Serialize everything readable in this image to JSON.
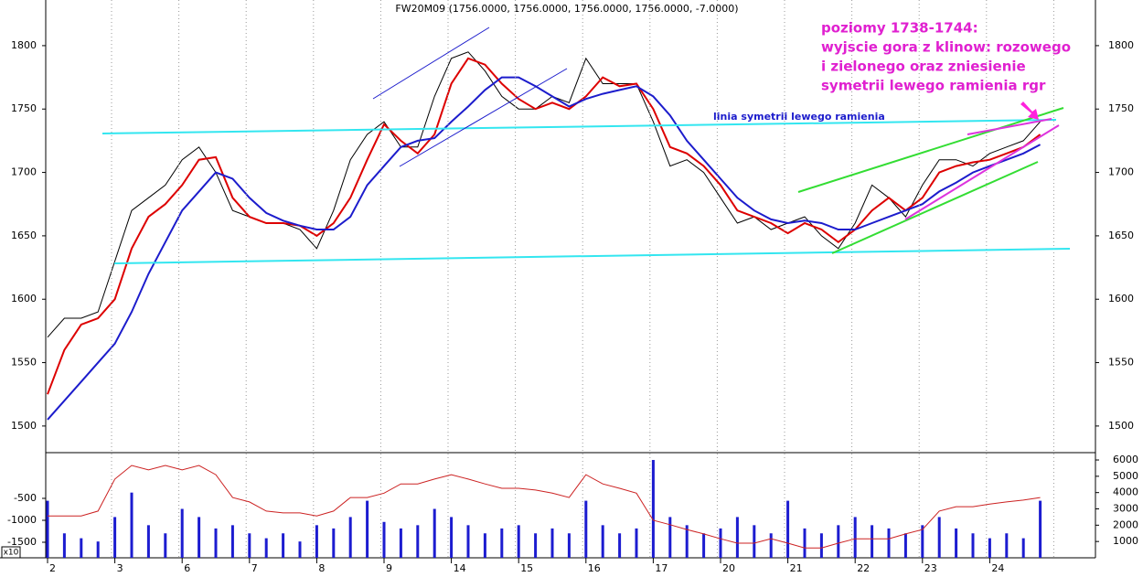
{
  "chart_data": [
    {
      "type": "line",
      "title": "FW20M09 (1756.0000, 1756.0000, 1756.0000, 1756.0000, -7.0000)",
      "annotations": [
        "linia symetrii lewego ramienia",
        "poziomy 1738-1744:",
        "wyjscie gora z klinow: rozowego",
        "i zielonego oraz zniesienie",
        "symetrii lewego ramienia rgr"
      ],
      "ylim": [
        1479,
        1836
      ],
      "yticks": [
        1500,
        1550,
        1600,
        1650,
        1700,
        1750,
        1800
      ],
      "grid": "x",
      "series": [
        {
          "color": "#000000",
          "values": [
            1570,
            1585,
            1585,
            1590,
            1630,
            1670,
            1680,
            1690,
            1710,
            1720,
            1700,
            1670,
            1665,
            1660,
            1660,
            1655,
            1640,
            1670,
            1710,
            1730,
            1740,
            1720,
            1720,
            1760,
            1790,
            1795,
            1780,
            1760,
            1750,
            1750,
            1760,
            1755,
            1790,
            1770,
            1770,
            1770,
            1740,
            1705,
            1710,
            1700,
            1680,
            1660,
            1665,
            1655,
            1660,
            1665,
            1650,
            1640,
            1660,
            1690,
            1680,
            1665,
            1690,
            1710,
            1710,
            1705,
            1715,
            1720,
            1725,
            1740
          ]
        },
        {
          "color": "#dd0000",
          "values": [
            1525,
            1560,
            1580,
            1585,
            1600,
            1640,
            1665,
            1675,
            1690,
            1710,
            1712,
            1680,
            1665,
            1660,
            1660,
            1658,
            1650,
            1660,
            1680,
            1710,
            1738,
            1725,
            1715,
            1730,
            1770,
            1790,
            1785,
            1770,
            1758,
            1750,
            1755,
            1750,
            1760,
            1775,
            1768,
            1770,
            1750,
            1720,
            1715,
            1705,
            1690,
            1670,
            1665,
            1660,
            1652,
            1660,
            1655,
            1645,
            1655,
            1670,
            1680,
            1670,
            1680,
            1700,
            1705,
            1708,
            1710,
            1715,
            1720,
            1730
          ]
        },
        {
          "color": "#1c1ccc",
          "values": [
            1505,
            1520,
            1535,
            1550,
            1565,
            1590,
            1620,
            1645,
            1670,
            1685,
            1700,
            1695,
            1680,
            1668,
            1662,
            1658,
            1655,
            1655,
            1665,
            1690,
            1705,
            1720,
            1725,
            1727,
            1740,
            1752,
            1765,
            1775,
            1775,
            1768,
            1760,
            1752,
            1758,
            1762,
            1765,
            1768,
            1760,
            1745,
            1725,
            1710,
            1695,
            1680,
            1670,
            1663,
            1660,
            1662,
            1660,
            1655,
            1655,
            1660,
            1665,
            1670,
            1675,
            1685,
            1692,
            1700,
            1705,
            1710,
            1715,
            1722
          ]
        }
      ]
    },
    {
      "type": "bar",
      "categories": [
        "2",
        null,
        null,
        null,
        "3",
        null,
        null,
        null,
        "6",
        null,
        null,
        null,
        "7",
        null,
        null,
        null,
        "8",
        null,
        null,
        null,
        "9",
        null,
        null,
        null,
        "14",
        null,
        null,
        null,
        "15",
        null,
        null,
        null,
        "16",
        null,
        null,
        null,
        "17",
        null,
        null,
        null,
        "20",
        null,
        null,
        null,
        "21",
        null,
        null,
        null,
        "22",
        null,
        null,
        null,
        "23",
        null,
        null,
        null,
        "24",
        null,
        null,
        null
      ],
      "y_axis_unit": "x10",
      "ylim": [
        -1854,
        542
      ],
      "yticks": [
        -500,
        -1000,
        -1500
      ],
      "y2lim": [
        0,
        6450
      ],
      "y2ticks": [
        1000,
        2000,
        3000,
        4000,
        5000,
        6000
      ],
      "series": [
        {
          "color": "#1c1cd0",
          "axis": "y2",
          "values": [
            3500,
            1500,
            1200,
            1000,
            2500,
            4000,
            2000,
            1500,
            3000,
            2500,
            1800,
            2000,
            1500,
            1200,
            1500,
            1000,
            2000,
            1800,
            2500,
            3500,
            2200,
            1800,
            2000,
            3000,
            2500,
            2000,
            1500,
            1800,
            2000,
            1500,
            1800,
            1500,
            3500,
            2000,
            1500,
            1800,
            6000,
            2500,
            2000,
            1500,
            1800,
            2500,
            2000,
            1500,
            3500,
            1800,
            1500,
            2000,
            2500,
            2000,
            1800,
            1500,
            2000,
            2500,
            1800,
            1500,
            1200,
            1500,
            1200,
            3500
          ]
        },
        {
          "color": "#cc2222",
          "values": [
            -900,
            -900,
            -900,
            -790,
            -60,
            250,
            150,
            250,
            150,
            250,
            40,
            -480,
            -580,
            -790,
            -830,
            -830,
            -900,
            -790,
            -480,
            -480,
            -380,
            -170,
            -170,
            -60,
            40,
            -60,
            -170,
            -270,
            -270,
            -310,
            -380,
            -480,
            40,
            -170,
            -270,
            -380,
            -1000,
            -1100,
            -1210,
            -1310,
            -1420,
            -1520,
            -1520,
            -1420,
            -1520,
            -1630,
            -1630,
            -1520,
            -1420,
            -1420,
            -1420,
            -1310,
            -1210,
            -790,
            -690,
            -690,
            -630,
            -580,
            -540,
            -480
          ]
        }
      ]
    }
  ]
}
